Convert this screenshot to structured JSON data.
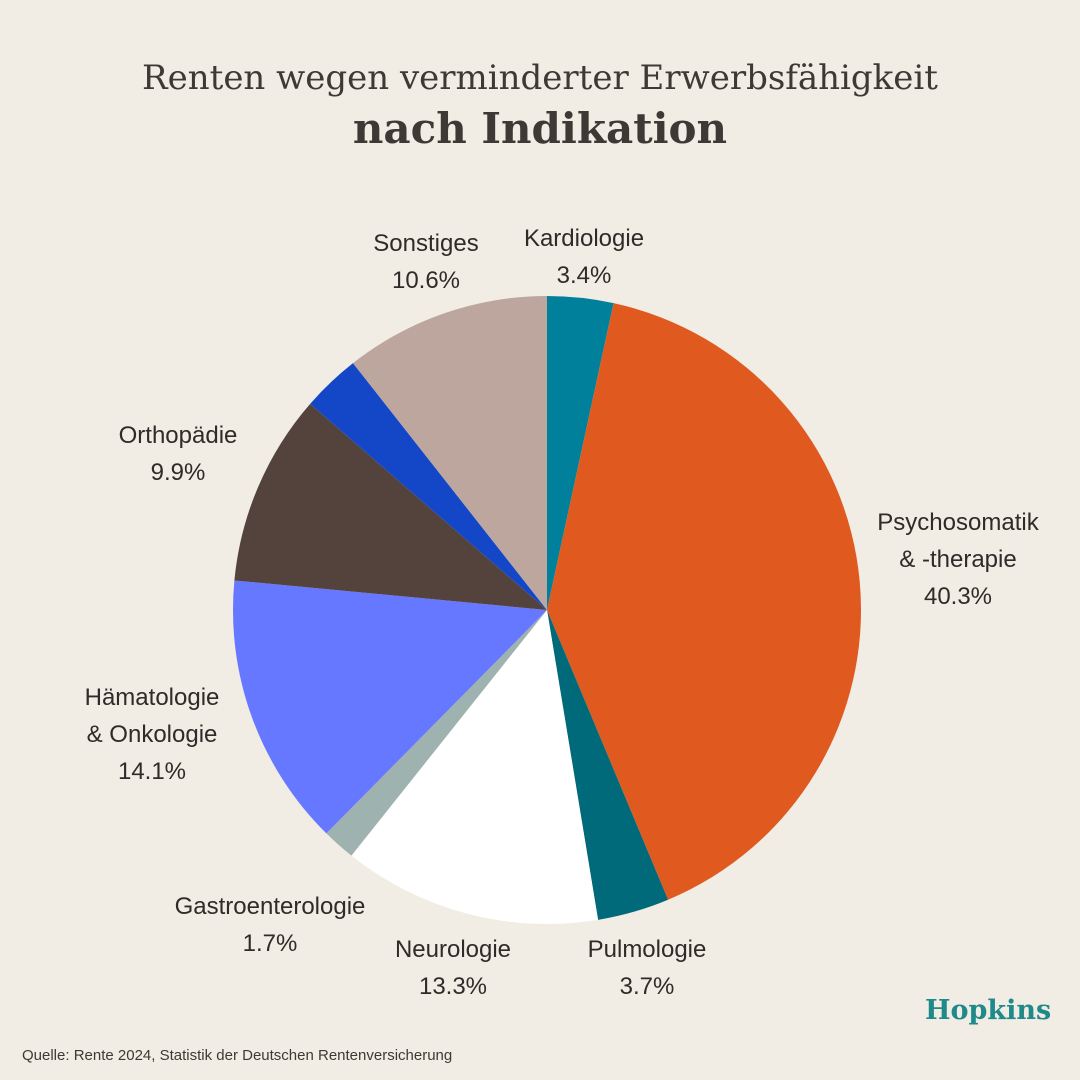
{
  "title": {
    "line1": "Renten wegen verminderter Erwerbsfähigkeit",
    "line2": "nach Indikation"
  },
  "chart_data": {
    "type": "pie",
    "slices": [
      {
        "label": "Kardiologie",
        "value": 3.4,
        "display": "3.4%",
        "color": "#00809a"
      },
      {
        "label": "Psychosomatik & -therapie",
        "value": 40.3,
        "display": "40.3%",
        "color": "#e05a20"
      },
      {
        "label": "Pulmologie",
        "value": 3.7,
        "display": "3.7%",
        "color": "#006a7a"
      },
      {
        "label": "Neurologie",
        "value": 13.3,
        "display": "13.3%",
        "color": "#ffffff"
      },
      {
        "label": "Gastroenterologie",
        "value": 1.7,
        "display": "1.7%",
        "color": "#9eb2b0"
      },
      {
        "label": "Hämatologie & Onkologie",
        "value": 14.1,
        "display": "14.1%",
        "color": "#6678ff"
      },
      {
        "label": "Orthopädie",
        "value": 9.9,
        "display": "9.9%",
        "color": "#54433c"
      },
      {
        "label": "",
        "value": 3.0,
        "display": "",
        "color": "#1447c8"
      },
      {
        "label": "Sonstiges",
        "value": 10.6,
        "display": "10.6%",
        "color": "#bca69e"
      }
    ]
  },
  "labels": [
    {
      "lines": [
        "Kardiologie",
        "3.4%"
      ]
    },
    {
      "lines": [
        "Psychosomatik",
        "& -therapie",
        "40.3%"
      ]
    },
    {
      "lines": [
        "Pulmologie",
        "3.7%"
      ]
    },
    {
      "lines": [
        "Neurologie",
        "13.3%"
      ]
    },
    {
      "lines": [
        "Gastroenterologie",
        "1.7%"
      ]
    },
    {
      "lines": [
        "Hämatologie",
        "& Onkologie",
        "14.1%"
      ]
    },
    {
      "lines": [
        "Orthopädie",
        "9.9%"
      ]
    },
    {
      "lines": []
    },
    {
      "lines": [
        "Sonstiges",
        "10.6%"
      ]
    }
  ],
  "source": "Quelle: Rente 2024, Statistik der Deutschen Rentenversicherung",
  "brand": "Hopkins"
}
